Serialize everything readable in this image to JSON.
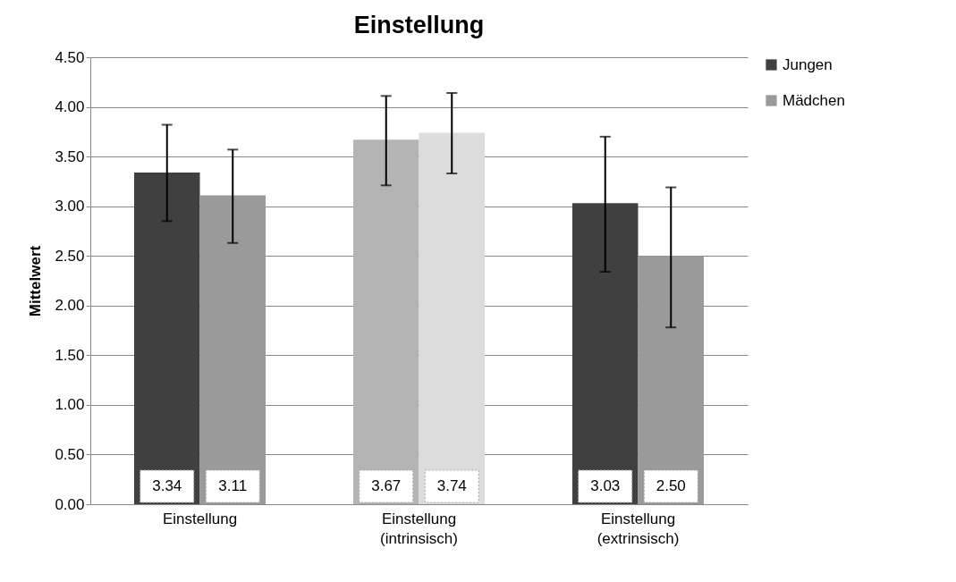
{
  "chart_data": {
    "type": "bar",
    "title": "Einstellung",
    "ylabel": "Mittelwert",
    "categories": [
      "Einstellung",
      "Einstellung (intrinsisch)",
      "Einstellung (extrinsisch)"
    ],
    "series": [
      {
        "name": "Jungen",
        "color": "#404040",
        "colors": [
          "#404040",
          "#b4b4b4",
          "#404040"
        ],
        "values": [
          3.34,
          3.67,
          3.03
        ],
        "value_labels": [
          "3.34",
          "3.67",
          "3.03"
        ],
        "errors": [
          [
            2.85,
            3.82
          ],
          [
            3.21,
            4.11
          ],
          [
            2.34,
            3.7
          ]
        ]
      },
      {
        "name": "Mädchen",
        "color": "#9a9a9a",
        "colors": [
          "#9a9a9a",
          "#dcdcdc",
          "#9a9a9a"
        ],
        "values": [
          3.11,
          3.74,
          2.5
        ],
        "value_labels": [
          "3.11",
          "3.74",
          "2.50"
        ],
        "errors": [
          [
            2.63,
            3.57
          ],
          [
            3.33,
            4.14
          ],
          [
            1.78,
            3.19
          ]
        ]
      }
    ],
    "ylim": [
      0,
      4.5
    ],
    "yticks": [
      {
        "value": 0,
        "label": "0.00"
      },
      {
        "value": 0.5,
        "label": "0.50"
      },
      {
        "value": 1,
        "label": "1.00"
      },
      {
        "value": 1.5,
        "label": "1.50"
      },
      {
        "value": 2,
        "label": "2.00"
      },
      {
        "value": 2.5,
        "label": "2.50"
      },
      {
        "value": 3,
        "label": "3.00"
      },
      {
        "value": 3.5,
        "label": "3.50"
      },
      {
        "value": 4,
        "label": "4.00"
      },
      {
        "value": 4.5,
        "label": "4.50"
      }
    ],
    "grid": "y",
    "legend": "right"
  }
}
